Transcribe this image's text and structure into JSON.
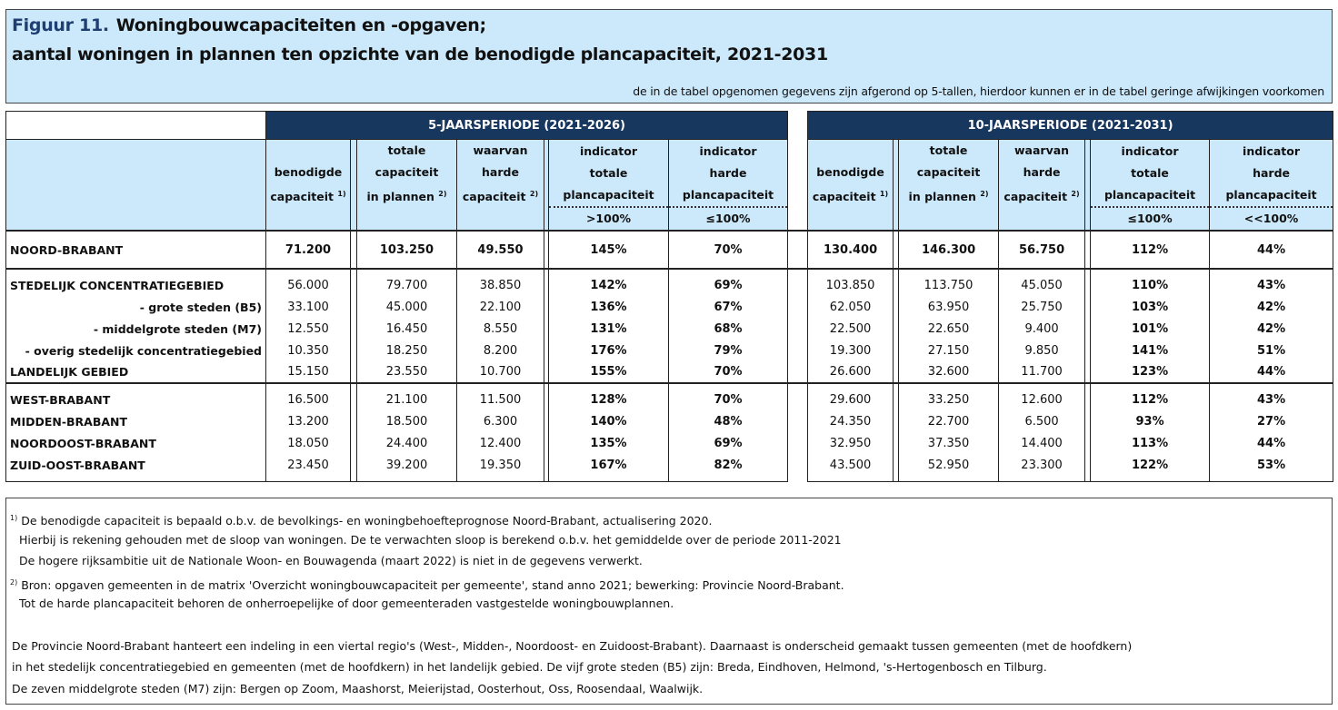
{
  "title": {
    "figure_label": "Figuur 11.",
    "line1": "Woningbouwcapaciteiten en -opgaven;",
    "line2": "aantal woningen in plannen ten opzichte van de benodigde plancapaciteit,  2021-2031",
    "note": "de in de tabel opgenomen gegevens zijn afgerond op 5-tallen, hierdoor kunnen er in de tabel geringe afwijkingen voorkomen"
  },
  "periods": [
    "5-JAARSPERIODE (2021-2026)",
    "10-JAARSPERIODE (2021-2031)"
  ],
  "columns": [
    {
      "lines": [
        "benodigde",
        "capaciteit"
      ],
      "sup": "1)"
    },
    {
      "lines": [
        "totale",
        "capaciteit",
        "in plannen"
      ],
      "sup": "2)"
    },
    {
      "lines": [
        "waarvan",
        "harde",
        "capaciteit"
      ],
      "sup": "2)"
    },
    {
      "lines": [
        "indicator",
        "totale",
        "plancapaciteit"
      ]
    },
    {
      "lines": [
        "indicator",
        "harde",
        "plancapaciteit"
      ]
    }
  ],
  "indicator_thresholds": {
    "five": [
      ">100%",
      "≤100%"
    ],
    "ten": [
      "≤100%",
      "<<100%"
    ]
  },
  "rows": [
    {
      "label": "NOORD-BRABANT",
      "type": "total",
      "five": [
        "71.200",
        "103.250",
        "49.550",
        "145%",
        "70%"
      ],
      "ten": [
        "130.400",
        "146.300",
        "56.750",
        "112%",
        "44%"
      ]
    },
    {
      "label": "STEDELIJK CONCENTRATIEGEBIED",
      "type": "main",
      "group": 1,
      "five": [
        "56.000",
        "79.700",
        "38.850",
        "142%",
        "69%"
      ],
      "ten": [
        "103.850",
        "113.750",
        "45.050",
        "110%",
        "43%"
      ]
    },
    {
      "label": "- grote steden (B5)",
      "type": "sub",
      "group": 1,
      "five": [
        "33.100",
        "45.000",
        "22.100",
        "136%",
        "67%"
      ],
      "ten": [
        "62.050",
        "63.950",
        "25.750",
        "103%",
        "42%"
      ]
    },
    {
      "label": "- middelgrote steden (M7)",
      "type": "sub",
      "group": 1,
      "five": [
        "12.550",
        "16.450",
        "8.550",
        "131%",
        "68%"
      ],
      "ten": [
        "22.500",
        "22.650",
        "9.400",
        "101%",
        "42%"
      ]
    },
    {
      "label": "- overig stedelijk concentratiegebied",
      "type": "sub",
      "group": 1,
      "five": [
        "10.350",
        "18.250",
        "8.200",
        "176%",
        "79%"
      ],
      "ten": [
        "19.300",
        "27.150",
        "9.850",
        "141%",
        "51%"
      ]
    },
    {
      "label": "LANDELIJK GEBIED",
      "type": "main",
      "group": 1,
      "five": [
        "15.150",
        "23.550",
        "10.700",
        "155%",
        "70%"
      ],
      "ten": [
        "26.600",
        "32.600",
        "11.700",
        "123%",
        "44%"
      ]
    },
    {
      "label": "WEST-BRABANT",
      "type": "main",
      "group": 2,
      "five": [
        "16.500",
        "21.100",
        "11.500",
        "128%",
        "70%"
      ],
      "ten": [
        "29.600",
        "33.250",
        "12.600",
        "112%",
        "43%"
      ]
    },
    {
      "label": "MIDDEN-BRABANT",
      "type": "main",
      "group": 2,
      "five": [
        "13.200",
        "18.500",
        "6.300",
        "140%",
        "48%"
      ],
      "ten": [
        "24.350",
        "22.700",
        "6.500",
        "93%",
        "27%"
      ]
    },
    {
      "label": "NOORDOOST-BRABANT",
      "type": "main",
      "group": 2,
      "five": [
        "18.050",
        "24.400",
        "12.400",
        "135%",
        "69%"
      ],
      "ten": [
        "32.950",
        "37.350",
        "14.400",
        "113%",
        "44%"
      ]
    },
    {
      "label": "ZUID-OOST-BRABANT",
      "type": "main",
      "group": 2,
      "five": [
        "23.450",
        "39.200",
        "19.350",
        "167%",
        "82%"
      ],
      "ten": [
        "43.500",
        "52.950",
        "23.300",
        "122%",
        "53%"
      ]
    }
  ],
  "footnotes": {
    "fn1_marker": "1)",
    "fn1": [
      "De benodigde capaciteit is bepaald o.b.v. de bevolkings- en woningbehoefteprognose Noord-Brabant, actualisering 2020.",
      "Hierbij is rekening gehouden met de sloop van woningen. De te verwachten sloop is berekend o.b.v. het gemiddelde over de periode 2011-2021",
      "De hogere rijksambitie uit de Nationale Woon- en Bouwagenda (maart 2022) is niet in de gegevens verwerkt."
    ],
    "fn2_marker": "2)",
    "fn2": [
      "Bron: opgaven gemeenten in de matrix 'Overzicht woningbouwcapaciteit per gemeente', stand anno 2021; bewerking: Provincie Noord-Brabant.",
      "Tot de harde plancapaciteit behoren de onherroepelijke of door gemeenteraden vastgestelde woningbouwplannen."
    ],
    "general": [
      "De Provincie Noord-Brabant hanteert een indeling in een viertal regio's (West-, Midden-, Noordoost- en Zuidoost-Brabant). Daarnaast is onderscheid gemaakt tussen gemeenten (met de hoofdkern)",
      "in het stedelijk concentratiegebied en gemeenten (met de hoofdkern) in het landelijk gebied. De vijf grote steden (B5)  zijn: Breda, Eindhoven, Helmond, 's-Hertogenbosch en Tilburg.",
      "De zeven middelgrote steden (M7) zijn: Bergen op Zoom, Maashorst, Meierijstad, Oosterhout, Oss, Roosendaal, Waalwijk."
    ]
  },
  "colors": {
    "navy": "#17375e",
    "light_blue": "#cce9fb",
    "figure_label": "#1f3f73"
  }
}
